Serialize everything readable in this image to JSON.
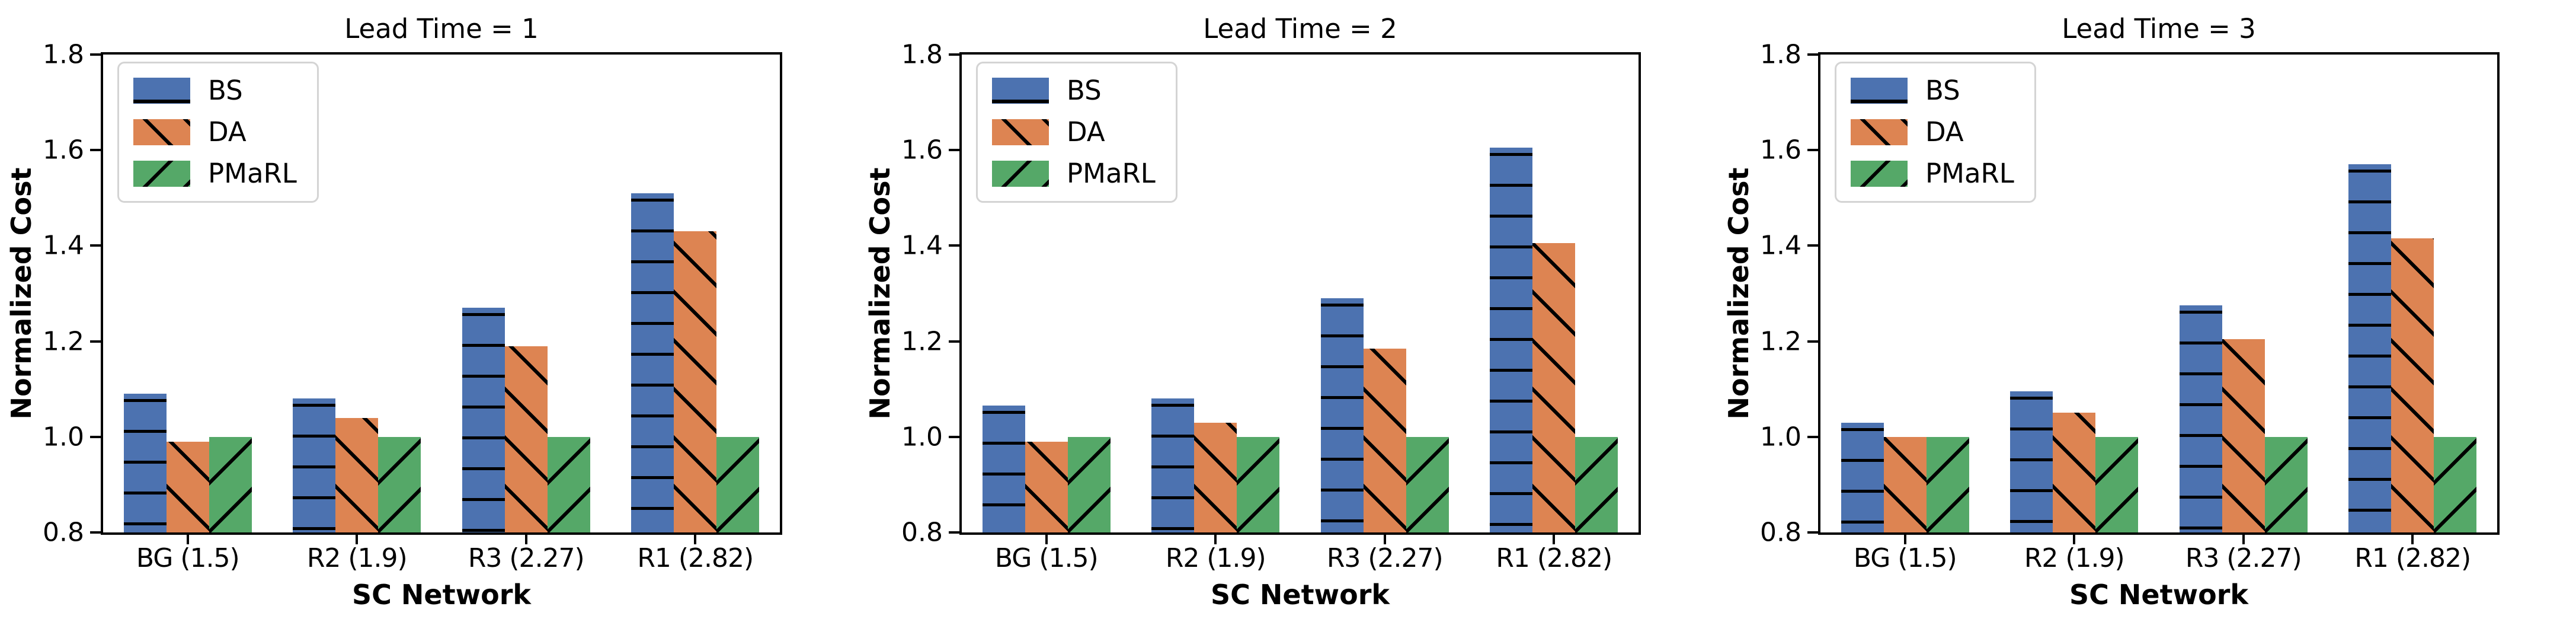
{
  "figure": {
    "ytick_labels": [
      "0.8",
      "1.0",
      "1.2",
      "1.4",
      "1.6",
      "1.8"
    ]
  },
  "chart_data": [
    {
      "type": "bar",
      "title": "Lead Time = 1",
      "xlabel": "SC Network",
      "ylabel": "Normalized Cost",
      "categories": [
        "BG (1.5)",
        "R2 (1.9)",
        "R3 (2.27)",
        "R1 (2.82)"
      ],
      "ylim": [
        0.8,
        1.8
      ],
      "yticks": [
        0.8,
        1.0,
        1.2,
        1.4,
        1.6,
        1.8
      ],
      "grid": false,
      "legend_position": "upper left",
      "legend_entries": [
        "BS",
        "DA",
        "PMaRL"
      ],
      "series": [
        {
          "name": "BS",
          "color": "#4C72B0",
          "hatch": "-",
          "values": [
            1.09,
            1.08,
            1.27,
            1.51
          ]
        },
        {
          "name": "DA",
          "color": "#DD8452",
          "hatch": "\\",
          "values": [
            0.99,
            1.04,
            1.19,
            1.43
          ]
        },
        {
          "name": "PMaRL",
          "color": "#55A868",
          "hatch": "/",
          "values": [
            1.0,
            1.0,
            1.0,
            1.0
          ]
        }
      ]
    },
    {
      "type": "bar",
      "title": "Lead Time = 2",
      "xlabel": "SC Network",
      "ylabel": "Normalized Cost",
      "categories": [
        "BG (1.5)",
        "R2 (1.9)",
        "R3 (2.27)",
        "R1 (2.82)"
      ],
      "ylim": [
        0.8,
        1.8
      ],
      "yticks": [
        0.8,
        1.0,
        1.2,
        1.4,
        1.6,
        1.8
      ],
      "grid": false,
      "legend_position": "upper left",
      "legend_entries": [
        "BS",
        "DA",
        "PMaRL"
      ],
      "series": [
        {
          "name": "BS",
          "color": "#4C72B0",
          "hatch": "-",
          "values": [
            1.065,
            1.08,
            1.29,
            1.605
          ]
        },
        {
          "name": "DA",
          "color": "#DD8452",
          "hatch": "\\",
          "values": [
            0.99,
            1.03,
            1.185,
            1.405
          ]
        },
        {
          "name": "PMaRL",
          "color": "#55A868",
          "hatch": "/",
          "values": [
            1.0,
            1.0,
            1.0,
            1.0
          ]
        }
      ]
    },
    {
      "type": "bar",
      "title": "Lead Time = 3",
      "xlabel": "SC Network",
      "ylabel": "Normalized Cost",
      "categories": [
        "BG (1.5)",
        "R2 (1.9)",
        "R3 (2.27)",
        "R1 (2.82)"
      ],
      "ylim": [
        0.8,
        1.8
      ],
      "yticks": [
        0.8,
        1.0,
        1.2,
        1.4,
        1.6,
        1.8
      ],
      "grid": false,
      "legend_position": "upper left",
      "legend_entries": [
        "BS",
        "DA",
        "PMaRL"
      ],
      "series": [
        {
          "name": "BS",
          "color": "#4C72B0",
          "hatch": "-",
          "values": [
            1.03,
            1.095,
            1.275,
            1.57
          ]
        },
        {
          "name": "DA",
          "color": "#DD8452",
          "hatch": "\\",
          "values": [
            1.0,
            1.05,
            1.205,
            1.415
          ]
        },
        {
          "name": "PMaRL",
          "color": "#55A868",
          "hatch": "/",
          "values": [
            1.0,
            1.0,
            1.0,
            1.0
          ]
        }
      ]
    }
  ]
}
